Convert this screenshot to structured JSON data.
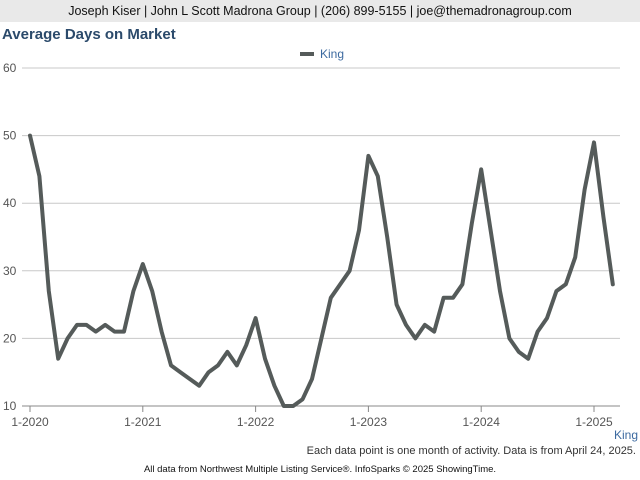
{
  "header": {
    "contact": "Joseph Kiser | John L Scott Madrona Group | (206) 899-5155 | joe@themadronagroup.com"
  },
  "chart_data": {
    "type": "line",
    "title": "Average Days on Market",
    "xlabel": "",
    "ylabel": "",
    "ylim": [
      10,
      60
    ],
    "yticks": [
      10,
      20,
      30,
      40,
      50,
      60
    ],
    "xlim": [
      0,
      63
    ],
    "xticks": [
      {
        "index": 0,
        "label": "1-2020"
      },
      {
        "index": 12,
        "label": "1-2021"
      },
      {
        "index": 24,
        "label": "1-2022"
      },
      {
        "index": 36,
        "label": "1-2023"
      },
      {
        "index": 48,
        "label": "1-2024"
      },
      {
        "index": 60,
        "label": "1-2025"
      }
    ],
    "grid": "horizontal",
    "legend_placement": "top-center",
    "series": [
      {
        "name": "King",
        "color": "#555b5a",
        "start": "1-2020",
        "values": [
          50,
          44,
          27,
          17,
          20,
          22,
          22,
          21,
          22,
          21,
          21,
          27,
          31,
          27,
          21,
          16,
          15,
          14,
          13,
          15,
          16,
          18,
          16,
          19,
          23,
          17,
          13,
          10,
          10,
          11,
          14,
          20,
          26,
          28,
          30,
          36,
          47,
          44,
          35,
          25,
          22,
          20,
          22,
          21,
          26,
          26,
          28,
          37,
          45,
          36,
          27,
          20,
          18,
          17,
          21,
          23,
          27,
          28,
          32,
          42,
          49,
          38,
          28
        ]
      }
    ],
    "end_label": "King"
  },
  "footnote": "Each data point is one month of activity. Data is from April 24, 2025.",
  "source": "All data from Northwest Multiple Listing Service®. InfoSparks © 2025 ShowingTime."
}
